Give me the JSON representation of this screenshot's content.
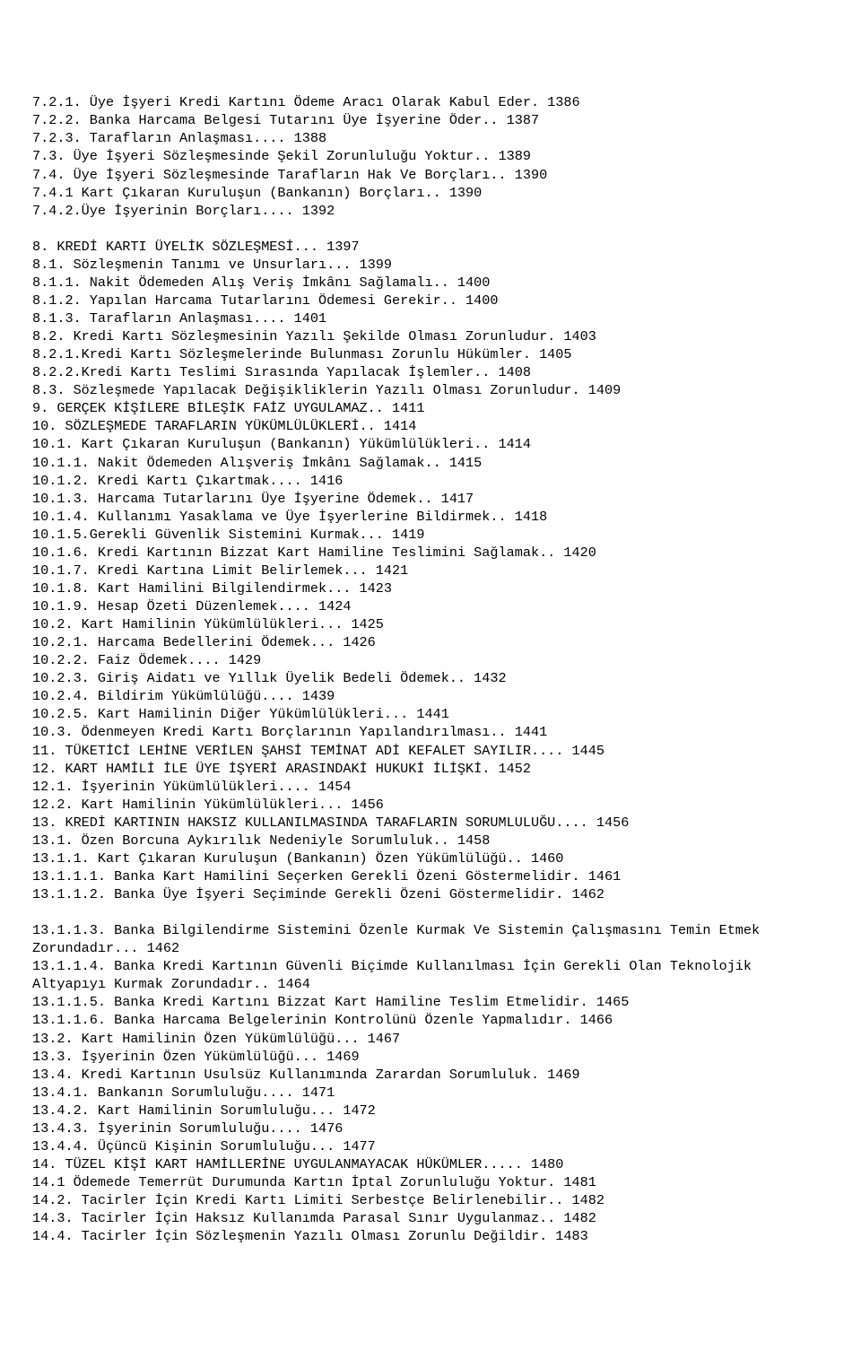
{
  "lines": [
    "7.2.1. Üye İşyeri Kredi Kartını Ödeme Aracı Olarak Kabul Eder. 1386",
    "7.2.2. Banka Harcama Belgesi Tutarını Üye İşyerine Öder.. 1387",
    "7.2.3. Tarafların Anlaşması.... 1388",
    "7.3. Üye İşyeri Sözleşmesinde Şekil Zorunluluğu Yoktur.. 1389",
    "7.4. Üye İşyeri Sözleşmesinde Tarafların Hak Ve Borçları.. 1390",
    "7.4.1 Kart Çıkaran Kuruluşun (Bankanın) Borçları.. 1390",
    "7.4.2.Üye İşyerinin Borçları.... 1392",
    "",
    "8. KREDİ KARTI ÜYELİK SÖZLEŞMESİ... 1397",
    "8.1. Sözleşmenin Tanımı ve Unsurları... 1399",
    "8.1.1. Nakit Ödemeden Alış Veriş İmkânı Sağlamalı.. 1400",
    "8.1.2. Yapılan Harcama Tutarlarını Ödemesi Gerekir.. 1400",
    "8.1.3. Tarafların Anlaşması.... 1401",
    "8.2. Kredi Kartı Sözleşmesinin Yazılı Şekilde Olması Zorunludur. 1403",
    "8.2.1.Kredi Kartı Sözleşmelerinde Bulunması Zorunlu Hükümler. 1405",
    "8.2.2.Kredi Kartı Teslimi Sırasında Yapılacak İşlemler.. 1408",
    "8.3. Sözleşmede Yapılacak Değişikliklerin Yazılı Olması Zorunludur. 1409",
    "9. GERÇEK KİŞİLERE BİLEŞİK FAİZ UYGULAMAZ.. 1411",
    "10. SÖZLEŞMEDE TARAFLARIN YÜKÜMLÜLÜKLERİ.. 1414",
    "10.1. Kart Çıkaran Kuruluşun (Bankanın) Yükümlülükleri.. 1414",
    "10.1.1. Nakit Ödemeden Alışveriş İmkânı Sağlamak.. 1415",
    "10.1.2. Kredi Kartı Çıkartmak.... 1416",
    "10.1.3. Harcama Tutarlarını Üye İşyerine Ödemek.. 1417",
    "10.1.4. Kullanımı Yasaklama ve Üye İşyerlerine Bildirmek.. 1418",
    "10.1.5.Gerekli Güvenlik Sistemini Kurmak... 1419",
    "10.1.6. Kredi Kartının Bizzat Kart Hamiline Teslimini Sağlamak.. 1420",
    "10.1.7. Kredi Kartına Limit Belirlemek... 1421",
    "10.1.8. Kart Hamilini Bilgilendirmek... 1423",
    "10.1.9. Hesap Özeti Düzenlemek.... 1424",
    "10.2. Kart Hamilinin Yükümlülükleri... 1425",
    "10.2.1. Harcama Bedellerini Ödemek... 1426",
    "10.2.2. Faiz Ödemek.... 1429",
    "10.2.3. Giriş Aidatı ve Yıllık Üyelik Bedeli Ödemek.. 1432",
    "10.2.4. Bildirim Yükümlülüğü.... 1439",
    "10.2.5. Kart Hamilinin Diğer Yükümlülükleri... 1441",
    "10.3. Ödenmeyen Kredi Kartı Borçlarının Yapılandırılması.. 1441",
    "11. TÜKETİCİ LEHİNE VERİLEN ŞAHSİ TEMİNAT ADİ KEFALET SAYILIR.... 1445",
    "12. KART HAMİLİ İLE ÜYE İŞYERİ ARASINDAKİ HUKUKİ İLİŞKİ. 1452",
    "12.1. İşyerinin Yükümlülükleri.... 1454",
    "12.2. Kart Hamilinin Yükümlülükleri... 1456",
    "13. KREDİ KARTININ HAKSIZ KULLANILMASINDA TARAFLARIN SORUMLULUĞU.... 1456",
    "13.1. Özen Borcuna Aykırılık Nedeniyle Sorumluluk.. 1458",
    "13.1.1. Kart Çıkaran Kuruluşun (Bankanın) Özen Yükümlülüğü.. 1460",
    "13.1.1.1. Banka Kart Hamilini Seçerken Gerekli Özeni Göstermelidir. 1461",
    "13.1.1.2. Banka Üye İşyeri Seçiminde Gerekli Özeni Göstermelidir. 1462",
    "",
    "13.1.1.3. Banka Bilgilendirme Sistemini Özenle Kurmak Ve Sistemin Çalışmasını Temin Etmek Zorundadır... 1462",
    "13.1.1.4. Banka Kredi Kartının Güvenli Biçimde Kullanılması İçin Gerekli Olan Teknolojik Altyapıyı Kurmak Zorundadır.. 1464",
    "13.1.1.5. Banka Kredi Kartını Bizzat Kart Hamiline Teslim Etmelidir. 1465",
    "13.1.1.6. Banka Harcama Belgelerinin Kontrolünü Özenle Yapmalıdır. 1466",
    "13.2. Kart Hamilinin Özen Yükümlülüğü... 1467",
    "13.3. İşyerinin Özen Yükümlülüğü... 1469",
    "13.4. Kredi Kartının Usulsüz Kullanımında Zarardan Sorumluluk. 1469",
    "13.4.1. Bankanın Sorumluluğu.... 1471",
    "13.4.2. Kart Hamilinin Sorumluluğu... 1472",
    "13.4.3. İşyerinin Sorumluluğu.... 1476",
    "13.4.4. Üçüncü Kişinin Sorumluluğu... 1477",
    "14. TÜZEL KİŞİ KART HAMİLLERİNE UYGULANMAYACAK HÜKÜMLER..... 1480",
    "14.1 Ödemede Temerrüt Durumunda Kartın İptal Zorunluluğu Yoktur. 1481",
    "14.2. Tacirler İçin Kredi Kartı Limiti Serbestçe Belirlenebilir.. 1482",
    "14.3. Tacirler İçin Haksız Kullanımda Parasal Sınır Uygulanmaz.. 1482",
    "14.4. Tacirler İçin Sözleşmenin Yazılı Olması Zorunlu Değildir. 1483"
  ]
}
